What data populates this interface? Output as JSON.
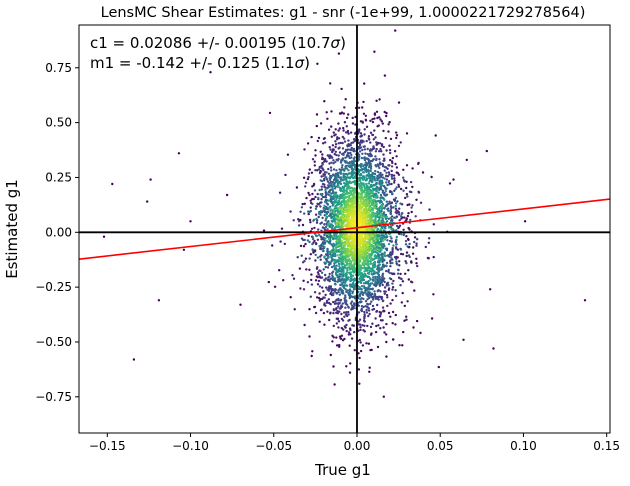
{
  "chart_data": {
    "type": "scatter",
    "title": "LensMC Shear Estimates: g1  - snr (-1e+99, 1.0000221729278564)",
    "xlabel": "True g1",
    "ylabel": "Estimated g1",
    "xlim": [
      -0.167,
      0.152
    ],
    "ylim": [
      -0.915,
      0.945
    ],
    "xticks": [
      -0.15,
      -0.1,
      -0.05,
      0.0,
      0.05,
      0.1,
      0.15
    ],
    "xtick_labels": [
      "−0.15",
      "−0.10",
      "−0.05",
      "0.00",
      "0.05",
      "0.10",
      "0.15"
    ],
    "yticks": [
      -0.75,
      -0.5,
      -0.25,
      0.0,
      0.25,
      0.5,
      0.75
    ],
    "ytick_labels": [
      "−0.75",
      "−0.50",
      "−0.25",
      "0.00",
      "0.25",
      "0.50",
      "0.75"
    ],
    "grid": false,
    "colormap": "viridis",
    "annotations": {
      "c1_prefix": "c1 = 0.02086 +/- 0.00195 (10.7",
      "m1_prefix": "m1 = -0.142 +/- 0.125 (1.1",
      "sigma": "σ",
      "close": ")"
    },
    "fit_line": {
      "intercept": 0.02086,
      "slope": 0.858,
      "color": "#ff0000"
    },
    "reference_lines": {
      "x": 0.0,
      "y": 0.0,
      "color": "#000000"
    },
    "scatter": {
      "x_center": 0.0,
      "x_std": 0.012,
      "y_center": 0.02,
      "y_std": 0.21,
      "outliers": [
        [
          -0.147,
          0.22
        ],
        [
          -0.152,
          -0.02
        ],
        [
          -0.124,
          0.24
        ],
        [
          -0.126,
          0.14
        ],
        [
          -0.119,
          -0.31
        ],
        [
          -0.107,
          0.36
        ],
        [
          -0.134,
          -0.58
        ],
        [
          -0.088,
          0.73
        ],
        [
          -0.1,
          0.05
        ],
        [
          -0.104,
          -0.08
        ],
        [
          0.082,
          -0.53
        ],
        [
          0.078,
          0.37
        ],
        [
          0.137,
          -0.31
        ],
        [
          0.101,
          0.05
        ],
        [
          0.08,
          -0.26
        ],
        [
          0.064,
          -0.49
        ],
        [
          0.066,
          0.33
        ],
        [
          -0.078,
          0.17
        ],
        [
          -0.07,
          -0.33
        ],
        [
          0.058,
          0.24
        ]
      ]
    }
  }
}
